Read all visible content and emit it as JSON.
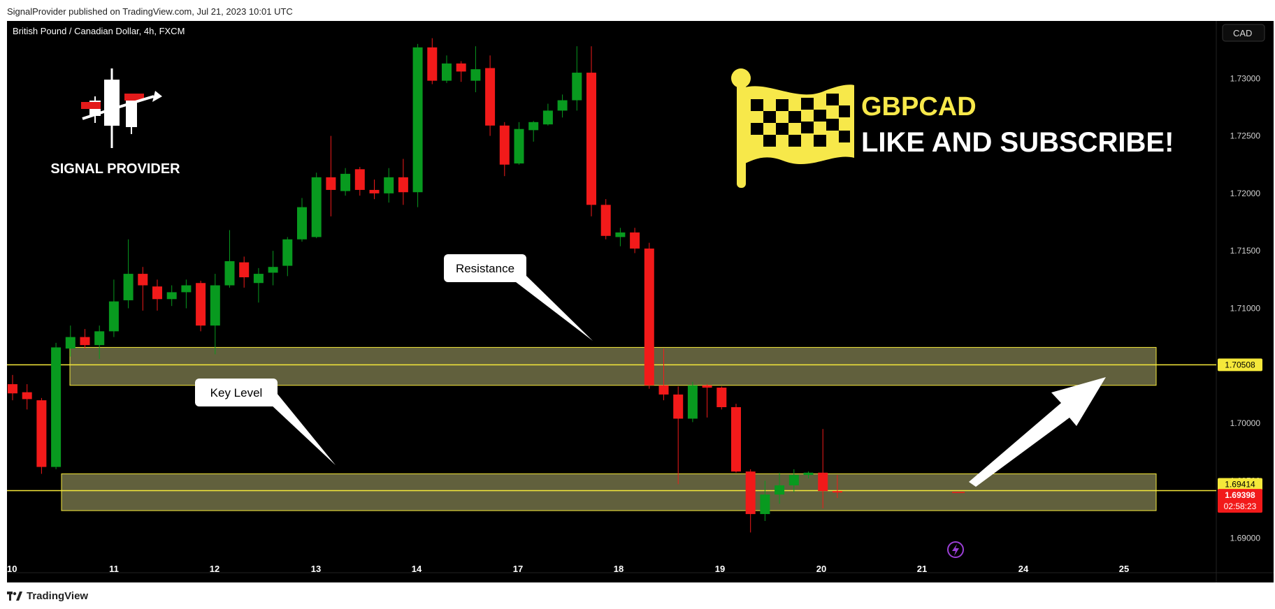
{
  "header": {
    "published": "SignalProvider published on TradingView.com, Jul 21, 2023 10:01 UTC"
  },
  "footer": {
    "brand": "TradingView",
    "logo": "tv-logo-icon"
  },
  "overlay": {
    "symbol_title": "British Pound / Canadian Dollar, 4h, FXCM",
    "currency_button": "CAD",
    "brand_label": "SIGNAL PROVIDER",
    "headline_pair": "GBPCAD",
    "headline_cta": "LIKE AND SUBSCRIBE!",
    "callout_resistance": "Resistance",
    "callout_key_level": "Key Level",
    "price_tag_resistance": "1.70508",
    "price_tag_key": "1.69414",
    "price_tag_last": "1.69398",
    "price_tag_countdown": "02:58:23",
    "icons": [
      "signal-provider-logo-icon",
      "checkered-flag-icon",
      "lightning-icon",
      "arrow-up-right-icon"
    ]
  },
  "colors": {
    "up": "#089a1f",
    "down": "#f21a1a",
    "zone_fill": "#6b6a44",
    "zone_line": "#f5e83a",
    "flag": "#f7e84a",
    "bg": "#000000"
  },
  "chart_data": {
    "type": "candlestick",
    "title": "British Pound / Canadian Dollar, 4h, FXCM",
    "x_labels": [
      "10",
      "11",
      "12",
      "13",
      "14",
      "17",
      "18",
      "19",
      "20",
      "21",
      "24",
      "25"
    ],
    "y_ticks": [
      "1.73000",
      "1.72500",
      "1.72000",
      "1.71500",
      "1.71000",
      "1.70500",
      "1.70000",
      "1.69500",
      "1.69000"
    ],
    "y_range": [
      1.687,
      1.735
    ],
    "grid": false,
    "candles": [
      {
        "o": 1.7034,
        "h": 1.7042,
        "l": 1.702,
        "c": 1.7026
      },
      {
        "o": 1.7027,
        "h": 1.7034,
        "l": 1.7012,
        "c": 1.7021
      },
      {
        "o": 1.702,
        "h": 1.7022,
        "l": 1.6956,
        "c": 1.6962
      },
      {
        "o": 1.6962,
        "h": 1.707,
        "l": 1.696,
        "c": 1.7066
      },
      {
        "o": 1.7065,
        "h": 1.7085,
        "l": 1.7058,
        "c": 1.7075
      },
      {
        "o": 1.7075,
        "h": 1.7082,
        "l": 1.7065,
        "c": 1.7068
      },
      {
        "o": 1.7068,
        "h": 1.7085,
        "l": 1.7056,
        "c": 1.708
      },
      {
        "o": 1.708,
        "h": 1.7125,
        "l": 1.7075,
        "c": 1.7106
      },
      {
        "o": 1.7107,
        "h": 1.716,
        "l": 1.71,
        "c": 1.713
      },
      {
        "o": 1.713,
        "h": 1.7136,
        "l": 1.7098,
        "c": 1.712
      },
      {
        "o": 1.7119,
        "h": 1.7125,
        "l": 1.7098,
        "c": 1.7108
      },
      {
        "o": 1.7108,
        "h": 1.712,
        "l": 1.7102,
        "c": 1.7114
      },
      {
        "o": 1.7114,
        "h": 1.7125,
        "l": 1.71,
        "c": 1.712
      },
      {
        "o": 1.7122,
        "h": 1.7124,
        "l": 1.708,
        "c": 1.7085
      },
      {
        "o": 1.7085,
        "h": 1.713,
        "l": 1.706,
        "c": 1.712
      },
      {
        "o": 1.712,
        "h": 1.7168,
        "l": 1.7118,
        "c": 1.7141
      },
      {
        "o": 1.714,
        "h": 1.7145,
        "l": 1.7118,
        "c": 1.7127
      },
      {
        "o": 1.7122,
        "h": 1.7135,
        "l": 1.7105,
        "c": 1.713
      },
      {
        "o": 1.7131,
        "h": 1.715,
        "l": 1.712,
        "c": 1.7136
      },
      {
        "o": 1.7137,
        "h": 1.7162,
        "l": 1.7128,
        "c": 1.716
      },
      {
        "o": 1.716,
        "h": 1.7196,
        "l": 1.7158,
        "c": 1.7188
      },
      {
        "o": 1.7162,
        "h": 1.7218,
        "l": 1.7161,
        "c": 1.7214
      },
      {
        "o": 1.7214,
        "h": 1.725,
        "l": 1.718,
        "c": 1.7203
      },
      {
        "o": 1.7202,
        "h": 1.7222,
        "l": 1.7198,
        "c": 1.7217
      },
      {
        "o": 1.7221,
        "h": 1.7223,
        "l": 1.7198,
        "c": 1.7203
      },
      {
        "o": 1.7203,
        "h": 1.7212,
        "l": 1.7195,
        "c": 1.72
      },
      {
        "o": 1.72,
        "h": 1.7222,
        "l": 1.7192,
        "c": 1.7214
      },
      {
        "o": 1.7214,
        "h": 1.723,
        "l": 1.719,
        "c": 1.7201
      },
      {
        "o": 1.7201,
        "h": 1.733,
        "l": 1.7188,
        "c": 1.7327
      },
      {
        "o": 1.7327,
        "h": 1.7335,
        "l": 1.7295,
        "c": 1.7298
      },
      {
        "o": 1.7298,
        "h": 1.732,
        "l": 1.7296,
        "c": 1.7313
      },
      {
        "o": 1.7313,
        "h": 1.7315,
        "l": 1.7297,
        "c": 1.7306
      },
      {
        "o": 1.7298,
        "h": 1.7328,
        "l": 1.7288,
        "c": 1.7308
      },
      {
        "o": 1.7309,
        "h": 1.732,
        "l": 1.725,
        "c": 1.7259
      },
      {
        "o": 1.7259,
        "h": 1.7262,
        "l": 1.7215,
        "c": 1.7225
      },
      {
        "o": 1.7226,
        "h": 1.7262,
        "l": 1.7225,
        "c": 1.7256
      },
      {
        "o": 1.7255,
        "h": 1.7263,
        "l": 1.7245,
        "c": 1.7262
      },
      {
        "o": 1.726,
        "h": 1.7278,
        "l": 1.7259,
        "c": 1.7272
      },
      {
        "o": 1.7272,
        "h": 1.7286,
        "l": 1.7266,
        "c": 1.7281
      },
      {
        "o": 1.7281,
        "h": 1.7328,
        "l": 1.7272,
        "c": 1.7305
      },
      {
        "o": 1.7305,
        "h": 1.7328,
        "l": 1.718,
        "c": 1.719
      },
      {
        "o": 1.719,
        "h": 1.7195,
        "l": 1.716,
        "c": 1.7163
      },
      {
        "o": 1.7162,
        "h": 1.717,
        "l": 1.7154,
        "c": 1.7166
      },
      {
        "o": 1.7166,
        "h": 1.717,
        "l": 1.7148,
        "c": 1.7152
      },
      {
        "o": 1.7152,
        "h": 1.7157,
        "l": 1.703,
        "c": 1.7033
      },
      {
        "o": 1.7033,
        "h": 1.7065,
        "l": 1.702,
        "c": 1.7025
      },
      {
        "o": 1.7025,
        "h": 1.7032,
        "l": 1.6947,
        "c": 1.7004
      },
      {
        "o": 1.7004,
        "h": 1.7036,
        "l": 1.7001,
        "c": 1.7033
      },
      {
        "o": 1.7033,
        "h": 1.7034,
        "l": 1.7005,
        "c": 1.7031
      },
      {
        "o": 1.7031,
        "h": 1.7032,
        "l": 1.7012,
        "c": 1.7014
      },
      {
        "o": 1.7014,
        "h": 1.7017,
        "l": 1.6957,
        "c": 1.6958
      },
      {
        "o": 1.6958,
        "h": 1.696,
        "l": 1.6905,
        "c": 1.6921
      },
      {
        "o": 1.6921,
        "h": 1.695,
        "l": 1.6915,
        "c": 1.6938
      },
      {
        "o": 1.6938,
        "h": 1.6957,
        "l": 1.693,
        "c": 1.6946
      },
      {
        "o": 1.6946,
        "h": 1.696,
        "l": 1.694,
        "c": 1.6955
      },
      {
        "o": 1.6955,
        "h": 1.6958,
        "l": 1.6952,
        "c": 1.6957
      },
      {
        "o": 1.6957,
        "h": 1.6995,
        "l": 1.6926,
        "c": 1.6941
      },
      {
        "o": 1.6941,
        "h": 1.6955,
        "l": 1.6935,
        "c": 1.694
      }
    ],
    "zones": [
      {
        "name": "Resistance",
        "low": 1.7033,
        "high": 1.7066,
        "line": 1.70508
      },
      {
        "name": "Key Level",
        "low": 1.6924,
        "high": 1.6956,
        "line": 1.69414
      }
    ],
    "last_price": 1.69398
  }
}
